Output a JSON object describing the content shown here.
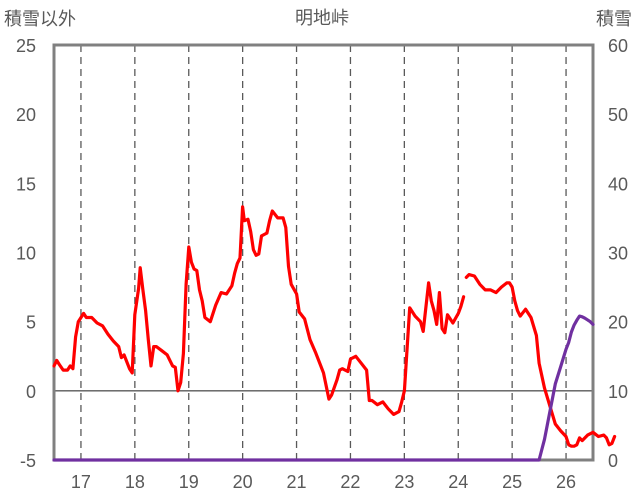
{
  "chart_data": {
    "type": "line",
    "title": "明地峠",
    "y_left_label": "積雪以外",
    "y_right_label": "積雪",
    "y_left_range": [
      -5,
      25
    ],
    "y_left_ticks": [
      -5,
      0,
      5,
      10,
      15,
      20,
      25
    ],
    "y_right_range": [
      0,
      60
    ],
    "y_right_ticks": [
      0,
      10,
      20,
      30,
      40,
      50,
      60
    ],
    "x_range": [
      16.5,
      26.5
    ],
    "x_ticks": [
      17,
      18,
      19,
      20,
      21,
      22,
      23,
      24,
      25,
      26
    ],
    "grid": {
      "vertical": "dashed",
      "horizontal": "none",
      "y_zero_line": true
    },
    "colors": {
      "temperature": "#ff0000",
      "snow": "#7030a0",
      "grid": "#595959",
      "frame": "#808080"
    },
    "series": [
      {
        "axis": "left",
        "color": "#ff0000",
        "segments": [
          [
            [
              16.5,
              1.8
            ],
            [
              16.55,
              2.2
            ],
            [
              16.6,
              1.9
            ],
            [
              16.67,
              1.5
            ],
            [
              16.75,
              1.5
            ],
            [
              16.8,
              1.8
            ],
            [
              16.85,
              1.6
            ],
            [
              16.9,
              3.9
            ],
            [
              16.95,
              5.0
            ],
            [
              17.0,
              5.3
            ],
            [
              17.05,
              5.6
            ],
            [
              17.1,
              5.3
            ],
            [
              17.2,
              5.3
            ],
            [
              17.3,
              4.9
            ],
            [
              17.4,
              4.7
            ],
            [
              17.5,
              4.1
            ],
            [
              17.6,
              3.6
            ],
            [
              17.7,
              3.2
            ],
            [
              17.75,
              2.4
            ],
            [
              17.8,
              2.6
            ],
            [
              17.85,
              2.1
            ],
            [
              17.9,
              1.6
            ],
            [
              17.95,
              1.3
            ],
            [
              18.0,
              5.5
            ],
            [
              18.07,
              7.4
            ],
            [
              18.1,
              8.9
            ],
            [
              18.15,
              7.3
            ],
            [
              18.2,
              5.8
            ],
            [
              18.25,
              3.7
            ],
            [
              18.3,
              1.8
            ],
            [
              18.35,
              3.2
            ],
            [
              18.4,
              3.2
            ],
            [
              18.5,
              2.9
            ],
            [
              18.6,
              2.6
            ],
            [
              18.7,
              1.8
            ],
            [
              18.75,
              1.7
            ],
            [
              18.8,
              0.0
            ],
            [
              18.85,
              0.6
            ],
            [
              18.9,
              2.7
            ],
            [
              18.95,
              7.7
            ],
            [
              19.0,
              10.4
            ],
            [
              19.05,
              9.3
            ],
            [
              19.1,
              8.8
            ],
            [
              19.15,
              8.7
            ],
            [
              19.2,
              7.3
            ],
            [
              19.25,
              6.5
            ],
            [
              19.3,
              5.3
            ],
            [
              19.4,
              5.0
            ],
            [
              19.5,
              6.2
            ],
            [
              19.6,
              7.1
            ],
            [
              19.7,
              7.0
            ],
            [
              19.8,
              7.6
            ],
            [
              19.85,
              8.5
            ],
            [
              19.9,
              9.2
            ],
            [
              19.95,
              9.6
            ],
            [
              20.0,
              13.3
            ],
            [
              20.03,
              12.3
            ],
            [
              20.1,
              12.4
            ],
            [
              20.15,
              11.5
            ],
            [
              20.2,
              10.2
            ],
            [
              20.25,
              9.8
            ],
            [
              20.3,
              9.9
            ],
            [
              20.35,
              11.2
            ],
            [
              20.4,
              11.3
            ],
            [
              20.45,
              11.4
            ],
            [
              20.5,
              12.3
            ],
            [
              20.55,
              13.0
            ],
            [
              20.65,
              12.5
            ],
            [
              20.75,
              12.5
            ],
            [
              20.8,
              11.8
            ],
            [
              20.85,
              9.0
            ],
            [
              20.9,
              7.7
            ],
            [
              21.0,
              7.0
            ],
            [
              21.05,
              5.7
            ],
            [
              21.15,
              5.2
            ],
            [
              21.25,
              3.7
            ],
            [
              21.35,
              2.8
            ],
            [
              21.45,
              1.8
            ],
            [
              21.5,
              1.3
            ],
            [
              21.6,
              -0.6
            ],
            [
              21.65,
              -0.3
            ],
            [
              21.75,
              0.8
            ],
            [
              21.8,
              1.5
            ],
            [
              21.85,
              1.6
            ],
            [
              21.95,
              1.4
            ],
            [
              22.0,
              2.3
            ],
            [
              22.1,
              2.5
            ],
            [
              22.2,
              2.0
            ],
            [
              22.3,
              1.5
            ],
            [
              22.35,
              -0.7
            ],
            [
              22.4,
              -0.7
            ],
            [
              22.5,
              -1.0
            ],
            [
              22.6,
              -0.8
            ],
            [
              22.7,
              -1.3
            ],
            [
              22.8,
              -1.7
            ],
            [
              22.9,
              -1.5
            ],
            [
              22.95,
              -0.8
            ],
            [
              23.0,
              0.0
            ],
            [
              23.1,
              6.0
            ],
            [
              23.2,
              5.4
            ],
            [
              23.3,
              5.0
            ],
            [
              23.35,
              4.3
            ],
            [
              23.45,
              7.8
            ],
            [
              23.5,
              6.5
            ],
            [
              23.55,
              5.8
            ],
            [
              23.6,
              4.8
            ],
            [
              23.65,
              7.1
            ],
            [
              23.7,
              4.5
            ],
            [
              23.75,
              4.2
            ],
            [
              23.8,
              5.5
            ],
            [
              23.85,
              5.2
            ],
            [
              23.9,
              4.9
            ],
            [
              24.0,
              5.6
            ],
            [
              24.05,
              6.1
            ],
            [
              24.1,
              6.8
            ]
          ],
          [
            [
              24.15,
              8.2
            ],
            [
              24.2,
              8.4
            ],
            [
              24.3,
              8.3
            ],
            [
              24.4,
              7.7
            ],
            [
              24.5,
              7.3
            ],
            [
              24.6,
              7.3
            ],
            [
              24.7,
              7.1
            ],
            [
              24.8,
              7.5
            ],
            [
              24.9,
              7.8
            ],
            [
              24.95,
              7.8
            ],
            [
              25.0,
              7.5
            ],
            [
              25.05,
              6.5
            ],
            [
              25.1,
              5.8
            ],
            [
              25.15,
              5.4
            ],
            [
              25.25,
              5.9
            ],
            [
              25.35,
              5.3
            ],
            [
              25.45,
              4.0
            ],
            [
              25.5,
              2.0
            ],
            [
              25.6,
              0.2
            ],
            [
              25.7,
              -1.1
            ],
            [
              25.8,
              -2.4
            ],
            [
              25.9,
              -2.9
            ],
            [
              26.0,
              -3.3
            ],
            [
              26.05,
              -3.9
            ],
            [
              26.1,
              -4.0
            ],
            [
              26.15,
              -4.0
            ],
            [
              26.2,
              -3.9
            ],
            [
              26.25,
              -3.4
            ],
            [
              26.3,
              -3.6
            ],
            [
              26.4,
              -3.2
            ],
            [
              26.5,
              -3.0
            ],
            [
              26.6,
              -3.3
            ],
            [
              26.7,
              -3.2
            ],
            [
              26.75,
              -3.4
            ],
            [
              26.8,
              -3.9
            ],
            [
              26.85,
              -3.8
            ],
            [
              26.9,
              -3.3
            ]
          ]
        ]
      },
      {
        "axis": "right",
        "color": "#7030a0",
        "segments": [
          [
            [
              16.5,
              0
            ],
            [
              25.5,
              0
            ],
            [
              25.55,
              1.5
            ],
            [
              25.6,
              3
            ],
            [
              25.65,
              5
            ],
            [
              25.7,
              7
            ],
            [
              25.75,
              9
            ],
            [
              25.8,
              11
            ],
            [
              25.9,
              13.5
            ],
            [
              26.0,
              16
            ],
            [
              26.05,
              17
            ],
            [
              26.1,
              18.5
            ],
            [
              26.15,
              19.5
            ],
            [
              26.2,
              20.2
            ],
            [
              26.25,
              20.8
            ],
            [
              26.3,
              20.7
            ],
            [
              26.35,
              20.5
            ],
            [
              26.45,
              20.0
            ],
            [
              26.5,
              19.6
            ]
          ]
        ]
      }
    ]
  }
}
